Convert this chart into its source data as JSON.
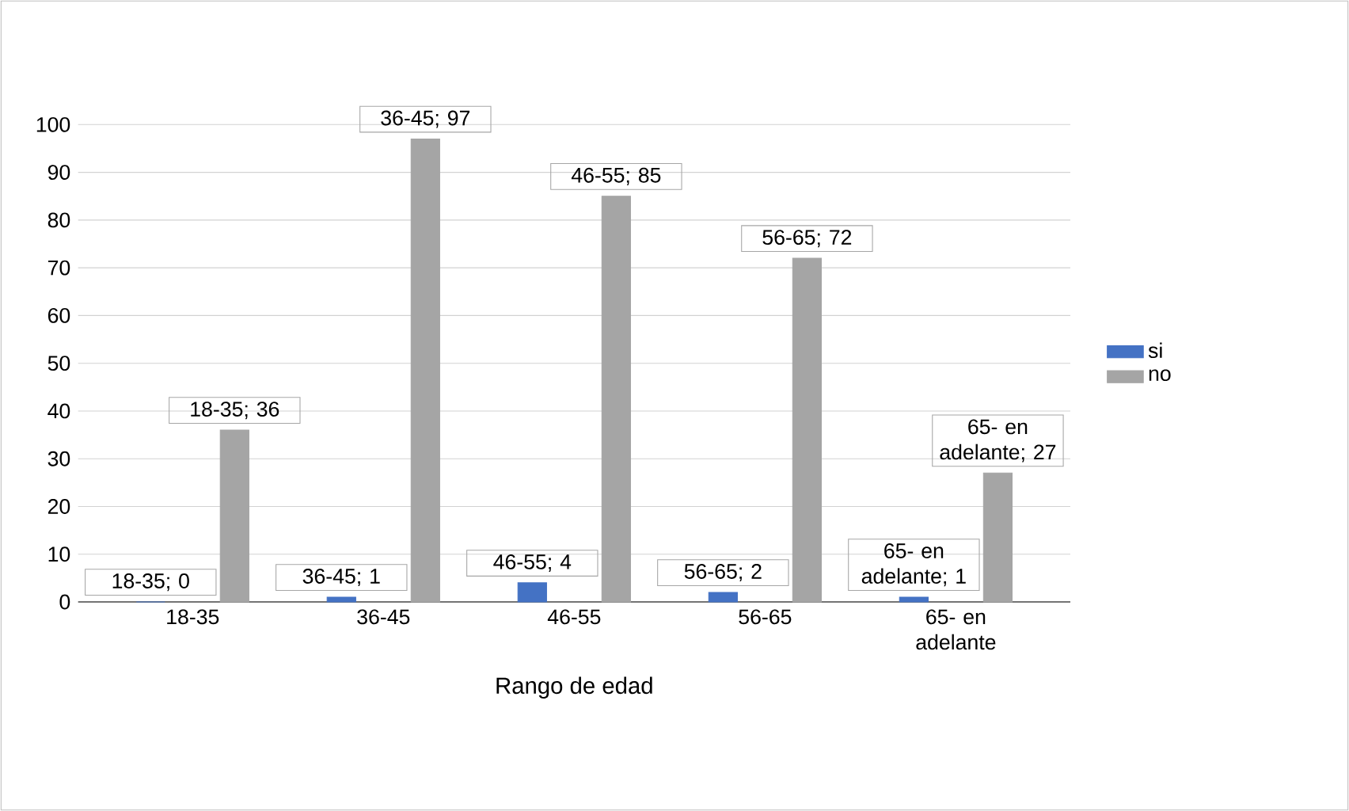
{
  "chart_data": {
    "type": "bar",
    "xlabel": "Rango de edad",
    "categories": [
      "18-35",
      "36-45",
      "46-55",
      "56-65",
      "65- en adelante"
    ],
    "series": [
      {
        "name": "si",
        "color": "#4472c4",
        "values": [
          0,
          1,
          4,
          2,
          1
        ],
        "value_labels": [
          "18-35; 0",
          "36-45; 1",
          "46-55; 4",
          "56-65; 2",
          "65- en adelante; 1"
        ]
      },
      {
        "name": "no",
        "color": "#a5a5a5",
        "values": [
          36,
          97,
          85,
          72,
          27
        ],
        "value_labels": [
          "18-35; 36",
          "36-45; 97",
          "46-55; 85",
          "56-65; 72",
          "65- en adelante; 27"
        ]
      }
    ],
    "ylim": [
      0,
      100
    ],
    "yticks": [
      0,
      10,
      20,
      30,
      40,
      50,
      60,
      70,
      80,
      90,
      100
    ],
    "grid": "y",
    "legend": "right"
  }
}
